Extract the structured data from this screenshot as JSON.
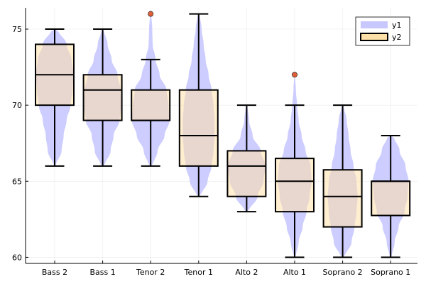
{
  "chart_data": {
    "type": "violin+box",
    "title": "",
    "xlabel": "",
    "ylabel": "",
    "ylim": [
      59.6,
      76.4
    ],
    "yticks": [
      60,
      65,
      70,
      75
    ],
    "grid": true,
    "legend_position": "top-right",
    "categories": [
      "Bass 2",
      "Bass 1",
      "Tenor 2",
      "Tenor 1",
      "Alto 2",
      "Alto 1",
      "Soprano 2",
      "Soprano 1"
    ],
    "series": [
      {
        "name": "y1",
        "kind": "violin",
        "color": "#c8c8ff",
        "violins": [
          {
            "range": [
              66,
              75
            ],
            "profile": [
              [
                66,
                0.05
              ],
              [
                67,
                0.35
              ],
              [
                68,
                0.45
              ],
              [
                69,
                0.6
              ],
              [
                70,
                0.8
              ],
              [
                71,
                0.9
              ],
              [
                72,
                0.95
              ],
              [
                73,
                0.85
              ],
              [
                74,
                0.6
              ],
              [
                75,
                0.15
              ]
            ]
          },
          {
            "range": [
              66,
              75
            ],
            "profile": [
              [
                66,
                0.1
              ],
              [
                67,
                0.4
              ],
              [
                68,
                0.55
              ],
              [
                69,
                0.85
              ],
              [
                70,
                0.95
              ],
              [
                71,
                0.9
              ],
              [
                72,
                0.75
              ],
              [
                73,
                0.45
              ],
              [
                74,
                0.25
              ],
              [
                75,
                0.05
              ]
            ]
          },
          {
            "range": [
              66,
              76
            ],
            "profile": [
              [
                66,
                0.1
              ],
              [
                67,
                0.35
              ],
              [
                68,
                0.7
              ],
              [
                69,
                0.95
              ],
              [
                70,
                0.9
              ],
              [
                71,
                0.8
              ],
              [
                72,
                0.45
              ],
              [
                73,
                0.25
              ],
              [
                74,
                0.1
              ],
              [
                75,
                0.08
              ],
              [
                76,
                0.03
              ]
            ]
          },
          {
            "range": [
              64,
              76
            ],
            "profile": [
              [
                64,
                0.1
              ],
              [
                65,
                0.45
              ],
              [
                66,
                0.65
              ],
              [
                67,
                0.75
              ],
              [
                68,
                0.8
              ],
              [
                69,
                0.8
              ],
              [
                70,
                0.75
              ],
              [
                71,
                0.65
              ],
              [
                72,
                0.5
              ],
              [
                73,
                0.35
              ],
              [
                74,
                0.25
              ],
              [
                75,
                0.15
              ],
              [
                76,
                0.05
              ]
            ]
          },
          {
            "range": [
              63,
              70
            ],
            "profile": [
              [
                63,
                0.1
              ],
              [
                64,
                0.55
              ],
              [
                65,
                0.85
              ],
              [
                66,
                0.95
              ],
              [
                67,
                0.7
              ],
              [
                68,
                0.3
              ],
              [
                69,
                0.12
              ],
              [
                70,
                0.04
              ]
            ]
          },
          {
            "range": [
              60,
              72
            ],
            "profile": [
              [
                60,
                0.05
              ],
              [
                61,
                0.2
              ],
              [
                62,
                0.4
              ],
              [
                63,
                0.6
              ],
              [
                64,
                0.75
              ],
              [
                65,
                0.85
              ],
              [
                66,
                0.8
              ],
              [
                67,
                0.55
              ],
              [
                68,
                0.35
              ],
              [
                69,
                0.2
              ],
              [
                70,
                0.12
              ],
              [
                71,
                0.06
              ],
              [
                72,
                0.02
              ]
            ]
          },
          {
            "range": [
              60,
              70
            ],
            "profile": [
              [
                60,
                0.1
              ],
              [
                61,
                0.45
              ],
              [
                62,
                0.6
              ],
              [
                63,
                0.7
              ],
              [
                64,
                0.75
              ],
              [
                65,
                0.7
              ],
              [
                66,
                0.55
              ],
              [
                67,
                0.4
              ],
              [
                68,
                0.3
              ],
              [
                69,
                0.2
              ],
              [
                70,
                0.05
              ]
            ]
          },
          {
            "range": [
              60,
              68
            ],
            "profile": [
              [
                60,
                0.05
              ],
              [
                61,
                0.2
              ],
              [
                62,
                0.4
              ],
              [
                63,
                0.7
              ],
              [
                64,
                0.85
              ],
              [
                65,
                0.9
              ],
              [
                66,
                0.75
              ],
              [
                67,
                0.45
              ],
              [
                68,
                0.15
              ]
            ]
          }
        ]
      },
      {
        "name": "y2",
        "kind": "box",
        "color": "#ffe0a8",
        "boxes": [
          {
            "q1": 70,
            "median": 72,
            "q3": 74,
            "whisker_low": 66,
            "whisker_high": 75,
            "outliers": []
          },
          {
            "q1": 69,
            "median": 71,
            "q3": 72,
            "whisker_low": 66,
            "whisker_high": 75,
            "outliers": []
          },
          {
            "q1": 69,
            "median": 69,
            "q3": 71,
            "whisker_low": 66,
            "whisker_high": 73,
            "outliers": [
              76
            ]
          },
          {
            "q1": 66,
            "median": 68,
            "q3": 71,
            "whisker_low": 64,
            "whisker_high": 76,
            "outliers": []
          },
          {
            "q1": 64,
            "median": 66,
            "q3": 67,
            "whisker_low": 63,
            "whisker_high": 70,
            "outliers": []
          },
          {
            "q1": 63,
            "median": 65,
            "q3": 66.5,
            "whisker_low": 60,
            "whisker_high": 70,
            "outliers": [
              72
            ]
          },
          {
            "q1": 62,
            "median": 64,
            "q3": 65.75,
            "whisker_low": 60,
            "whisker_high": 70,
            "outliers": []
          },
          {
            "q1": 62.75,
            "median": 65,
            "q3": 65,
            "whisker_low": 60,
            "whisker_high": 68,
            "outliers": []
          }
        ]
      }
    ],
    "legend": [
      {
        "label": "y1",
        "color": "#c8c8ff"
      },
      {
        "label": "y2",
        "color": "#ffe0a8"
      }
    ],
    "outlier_color": "#e0603a"
  }
}
